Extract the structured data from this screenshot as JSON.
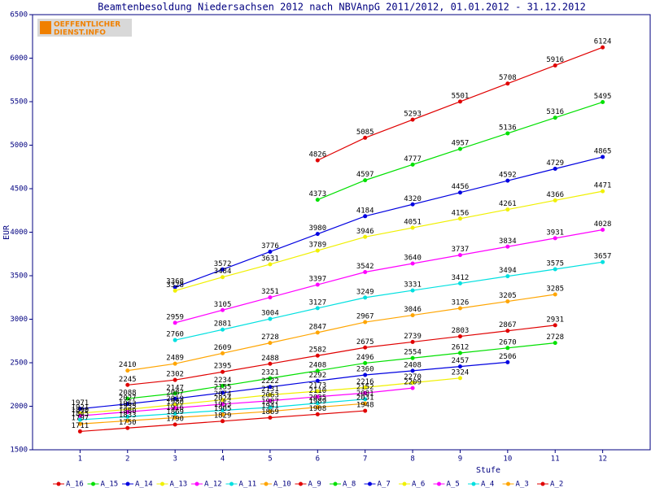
{
  "logo": {
    "line1": "OEFFENTLICHER",
    "line2": "DIENST.INFO"
  },
  "chart_data": {
    "type": "line",
    "title": "Beamtenbesoldung Niedersachsen 2012 nach NBVAnpG 2011/2012, 01.01.2012 - 31.12.2012",
    "x_label": "Stufe",
    "y_label": "EUR",
    "x": [
      1,
      2,
      3,
      4,
      5,
      6,
      7,
      8,
      9,
      10,
      11,
      12
    ],
    "xlim": [
      0,
      13
    ],
    "xticks": [
      1,
      2,
      3,
      4,
      5,
      6,
      7,
      8,
      9,
      10,
      11,
      12
    ],
    "ylim": [
      1500,
      6500
    ],
    "yticks": [
      1500,
      2000,
      2500,
      3000,
      3500,
      4000,
      4500,
      5000,
      5500,
      6000,
      6500
    ],
    "series": [
      {
        "name": "A_16",
        "color": "#e00000",
        "values": [
          null,
          null,
          null,
          null,
          null,
          4826,
          5085,
          5293,
          5501,
          5708,
          5916,
          6124
        ]
      },
      {
        "name": "A_15",
        "color": "#00e000",
        "values": [
          null,
          null,
          null,
          null,
          null,
          4373,
          4597,
          4777,
          4957,
          5136,
          5316,
          5495
        ]
      },
      {
        "name": "A_14",
        "color": "#0000e0",
        "values": [
          null,
          null,
          3368,
          3572,
          3776,
          3980,
          4184,
          4320,
          4456,
          4592,
          4729,
          4865
        ]
      },
      {
        "name": "A_13",
        "color": "#f0f000",
        "values": [
          null,
          null,
          3328,
          3484,
          3631,
          3789,
          3946,
          4051,
          4156,
          4261,
          4366,
          4471
        ]
      },
      {
        "name": "A_12",
        "color": "#ff00ff",
        "values": [
          null,
          null,
          2959,
          3105,
          3251,
          3397,
          3542,
          3640,
          3737,
          3834,
          3931,
          4028
        ]
      },
      {
        "name": "A_11",
        "color": "#00e0e0",
        "values": [
          null,
          null,
          2760,
          2881,
          3004,
          3127,
          3249,
          3331,
          3412,
          3494,
          3575,
          3657
        ]
      },
      {
        "name": "A_10",
        "color": "#ffa500",
        "values": [
          null,
          2410,
          2489,
          2609,
          2728,
          2847,
          2967,
          3046,
          3126,
          3205,
          3285,
          null
        ]
      },
      {
        "name": "A_9",
        "color": "#e00000",
        "values": [
          null,
          2245,
          2302,
          2395,
          2488,
          2582,
          2675,
          2739,
          2803,
          2867,
          2931,
          null
        ]
      },
      {
        "name": "A_8",
        "color": "#00e000",
        "values": [
          null,
          2088,
          2147,
          2234,
          2321,
          2408,
          2496,
          2554,
          2612,
          2670,
          2728,
          null
        ]
      },
      {
        "name": "A_7",
        "color": "#0000e0",
        "values": [
          1971,
          2027,
          2087,
          2155,
          2222,
          2292,
          2360,
          2408,
          2457,
          2506,
          null,
          null
        ]
      },
      {
        "name": "A_6",
        "color": "#f0f000",
        "values": [
          1921,
          1963,
          2019,
          2074,
          2131,
          2173,
          2216,
          2270,
          2324,
          null,
          null,
          null
        ]
      },
      {
        "name": "A_5",
        "color": "#ff00ff",
        "values": [
          1890,
          1935,
          1980,
          2024,
          2063,
          2110,
          2152,
          2209,
          null,
          null,
          null,
          null
        ]
      },
      {
        "name": "A_4",
        "color": "#00e0e0",
        "values": [
          1845,
          1880,
          1916,
          1953,
          1987,
          2035,
          2081,
          null,
          null,
          null,
          null,
          null
        ]
      },
      {
        "name": "A_3",
        "color": "#ffa500",
        "values": [
          1797,
          1833,
          1869,
          1905,
          1941,
          1989,
          2031,
          null,
          null,
          null,
          null,
          null
        ]
      },
      {
        "name": "A_2",
        "color": "#e00000",
        "values": [
          1711,
          1750,
          1790,
          1829,
          1869,
          1908,
          1948,
          null,
          null,
          null,
          null,
          null
        ]
      }
    ]
  }
}
